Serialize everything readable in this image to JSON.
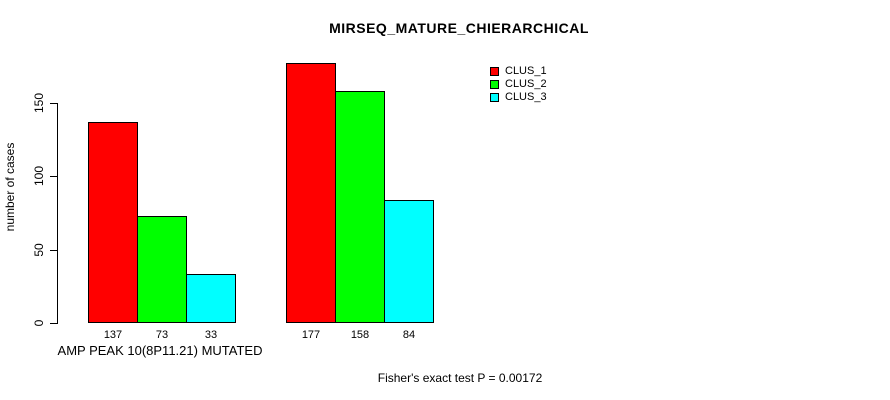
{
  "chart_data": {
    "type": "bar",
    "title": "MIRSEQ_MATURE_CHIERARCHICAL",
    "ylabel": "number of cases",
    "xlabel": "AMP PEAK 10(8P11.21) MUTATED",
    "ylim": [
      0,
      150
    ],
    "yticks": [
      0,
      50,
      100,
      150
    ],
    "grid": false,
    "bar_border_color": "#000000",
    "legend_position": "top-right",
    "legend": [
      "CLUS_1",
      "CLUS_2",
      "CLUS_3"
    ],
    "categories": [
      "AMP PEAK 10(8P11.21) MUTATED",
      ""
    ],
    "series": [
      {
        "name": "CLUS_1",
        "color": "#FF0000",
        "values": [
          137,
          177
        ]
      },
      {
        "name": "CLUS_2",
        "color": "#00FF00",
        "values": [
          73,
          158
        ]
      },
      {
        "name": "CLUS_3",
        "color": "#00FFFF",
        "values": [
          33,
          84
        ]
      }
    ],
    "bar_value_labels": [
      [
        "137",
        "73",
        "33"
      ],
      [
        "177",
        "158",
        "84"
      ]
    ],
    "annotation": "Fisher's exact test P = 0.00172"
  }
}
